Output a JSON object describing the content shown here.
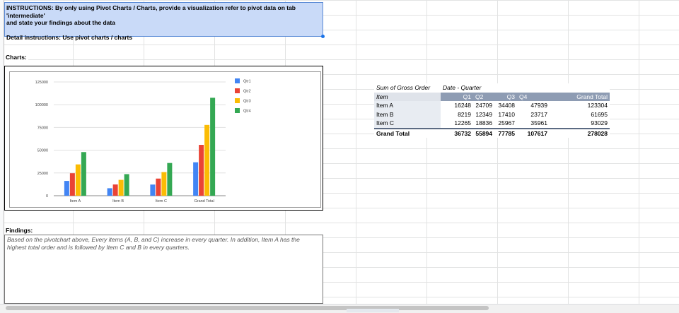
{
  "instructions": {
    "line1": "INSTRUCTIONS: By only using Pivot Charts / Charts, provide a visualization refer to pivot data on tab 'intermediate'",
    "line2": "and state your findings about the data",
    "line3": "Detail instructions: Use pivot charts / charts"
  },
  "charts_label": "Charts:",
  "findings_label": "Findings:",
  "findings_text": "Based on the pivotchart above, Every items (A, B, and C) increase in every quarter. In addition, Item A has the highest total order and is followed by Item C and B in every quarters.",
  "chart_data": {
    "type": "bar",
    "title": "",
    "xlabel": "",
    "ylabel": "",
    "categories": [
      "Item A",
      "Item B",
      "Item C",
      "Grand Total"
    ],
    "series": [
      {
        "name": "Qtr1",
        "color": "#4285f4",
        "values": [
          16248,
          8219,
          12265,
          36732
        ]
      },
      {
        "name": "Qtr2",
        "color": "#ea4335",
        "values": [
          24709,
          12349,
          18836,
          55894
        ]
      },
      {
        "name": "Qtr3",
        "color": "#fbbc04",
        "values": [
          34408,
          17410,
          25967,
          77785
        ]
      },
      {
        "name": "Qtr4",
        "color": "#34a853",
        "values": [
          47939,
          23717,
          35961,
          107617
        ]
      }
    ],
    "ylim": [
      0,
      125000
    ],
    "yticks": [
      "0",
      "25000",
      "50000",
      "75000",
      "100000",
      "125000"
    ],
    "ytick_values": [
      0,
      25000,
      50000,
      75000,
      100000,
      125000
    ],
    "grid": true,
    "legend": "top-right"
  },
  "pivot": {
    "corner": "Sum of Gross Order",
    "col_field": "Date - Quarter",
    "row_field": "Item",
    "columns": [
      "Q1",
      "Q2",
      "Q3",
      "Q4",
      "Grand Total"
    ],
    "rows": [
      {
        "label": "Item A",
        "values": [
          "16248",
          "24709",
          "34408",
          "47939",
          "123304"
        ]
      },
      {
        "label": "Item B",
        "values": [
          "8219",
          "12349",
          "17410",
          "23717",
          "61695"
        ]
      },
      {
        "label": "Item C",
        "values": [
          "12265",
          "18836",
          "25967",
          "35961",
          "93029"
        ]
      }
    ],
    "total": {
      "label": "Grand Total",
      "values": [
        "36732",
        "55894",
        "77785",
        "107617",
        "278028"
      ]
    }
  }
}
